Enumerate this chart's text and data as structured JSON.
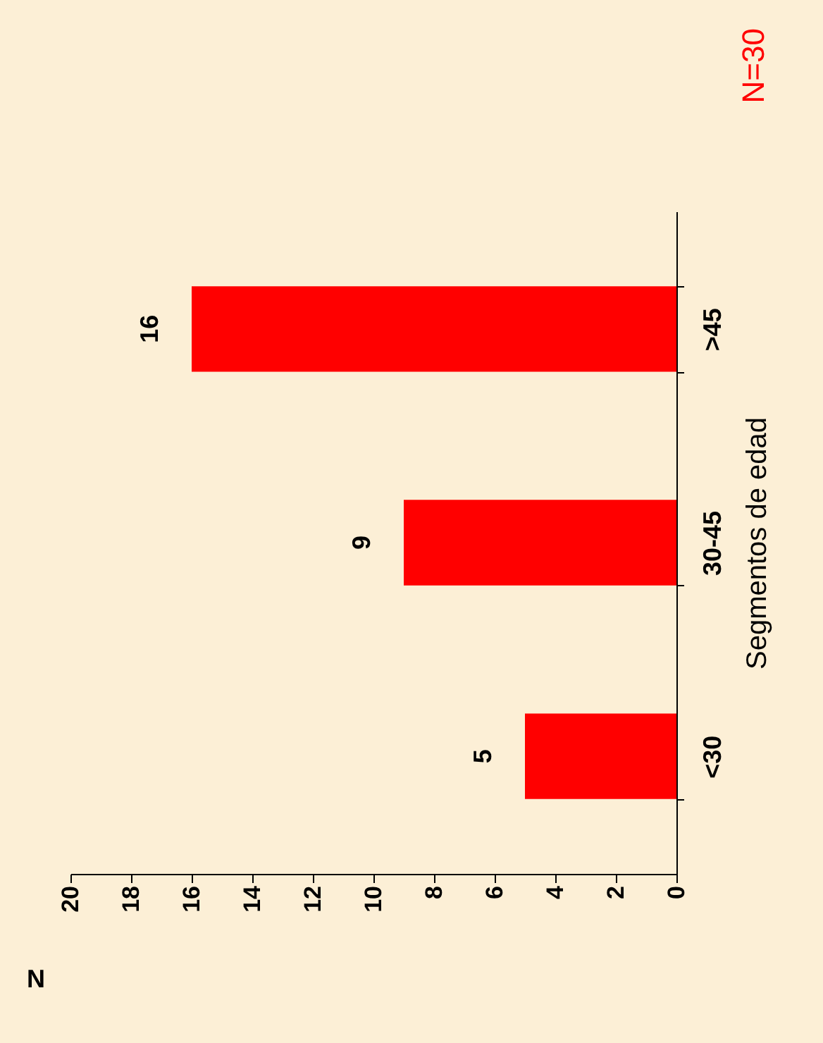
{
  "chart_data": {
    "type": "bar",
    "orientation": "horizontal",
    "xlabel": "N",
    "ylabel": "Segmentos de edad",
    "categories": [
      ">45",
      "30-45",
      "<30"
    ],
    "values": [
      16,
      9,
      5
    ],
    "color": "#ff0000",
    "xlim": [
      20,
      0
    ],
    "xticks": [
      0,
      2,
      4,
      6,
      8,
      10,
      12,
      14,
      16,
      18,
      20
    ],
    "data_labels": true,
    "annotations": [
      "N=30"
    ]
  }
}
